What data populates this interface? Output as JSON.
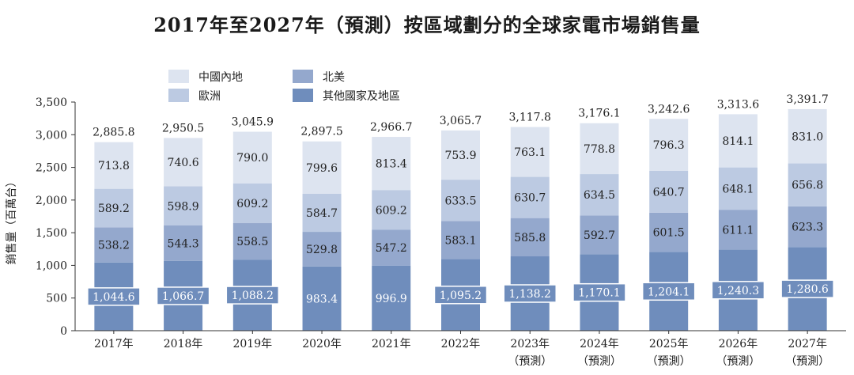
{
  "chart_data": {
    "type": "bar",
    "stacked": true,
    "title": "2017年至2027年（預測）按區域劃分的全球家電市場銷售量",
    "ylabel": "銷售量（百萬台）",
    "xlabel": "",
    "ylim": [
      0,
      3500
    ],
    "yticks": [
      "0",
      "500",
      "1,000",
      "1,500",
      "2,000",
      "2,500",
      "3,000",
      "3,500"
    ],
    "categories": [
      "2017年",
      "2018年",
      "2019年",
      "2020年",
      "2021年",
      "2022年",
      "2023年",
      "2024年",
      "2025年",
      "2026年",
      "2027年"
    ],
    "category_sublabels": [
      "",
      "",
      "",
      "",
      "",
      "",
      "（預測）",
      "（預測）",
      "（預測）",
      "（預測）",
      "（預測）"
    ],
    "series": [
      {
        "name": "其他國家及地區",
        "color": "#6f8dbc",
        "values": [
          1044.6,
          1066.7,
          1088.2,
          983.4,
          996.9,
          1095.2,
          1138.2,
          1170.1,
          1204.1,
          1240.3,
          1280.6
        ],
        "labels": [
          "1,044.6",
          "1,066.7",
          "1,088.2",
          "983.4",
          "996.9",
          "1,095.2",
          "1,138.2",
          "1,170.1",
          "1,204.1",
          "1,240.3",
          "1,280.6"
        ]
      },
      {
        "name": "北美",
        "color": "#94a8cd",
        "values": [
          538.2,
          544.3,
          558.5,
          529.8,
          547.2,
          583.1,
          585.8,
          592.7,
          601.5,
          611.1,
          623.3
        ],
        "labels": [
          "538.2",
          "544.3",
          "558.5",
          "529.8",
          "547.2",
          "583.1",
          "585.8",
          "592.7",
          "601.5",
          "611.1",
          "623.3"
        ]
      },
      {
        "name": "歐洲",
        "color": "#bccae2",
        "values": [
          589.2,
          598.9,
          609.2,
          584.7,
          609.2,
          633.5,
          630.7,
          634.5,
          640.7,
          648.1,
          656.8
        ],
        "labels": [
          "589.2",
          "598.9",
          "609.2",
          "584.7",
          "609.2",
          "633.5",
          "630.7",
          "634.5",
          "640.7",
          "648.1",
          "656.8"
        ]
      },
      {
        "name": "中國內地",
        "color": "#dde4f0",
        "values": [
          713.8,
          740.6,
          790.0,
          799.6,
          813.4,
          753.9,
          763.1,
          778.8,
          796.3,
          814.1,
          831.0
        ],
        "labels": [
          "713.8",
          "740.6",
          "790.0",
          "799.6",
          "813.4",
          "753.9",
          "763.1",
          "778.8",
          "796.3",
          "814.1",
          "831.0"
        ]
      }
    ],
    "totals": [
      2885.8,
      2950.5,
      3045.9,
      2897.5,
      2966.7,
      3065.7,
      3117.8,
      3176.1,
      3242.6,
      3313.6,
      3391.7
    ],
    "total_labels": [
      "2,885.8",
      "2,950.5",
      "3,045.9",
      "2,897.5",
      "2,966.7",
      "3,065.7",
      "3,117.8",
      "3,176.1",
      "3,242.6",
      "3,313.6",
      "3,391.7"
    ],
    "boxed_bottom_labels": [
      true,
      true,
      true,
      false,
      false,
      true,
      true,
      true,
      true,
      true,
      true
    ],
    "grid": false,
    "legend": {
      "placement": "top-left",
      "order": [
        "中國內地",
        "北美",
        "歐洲",
        "其他國家及地區"
      ]
    }
  }
}
